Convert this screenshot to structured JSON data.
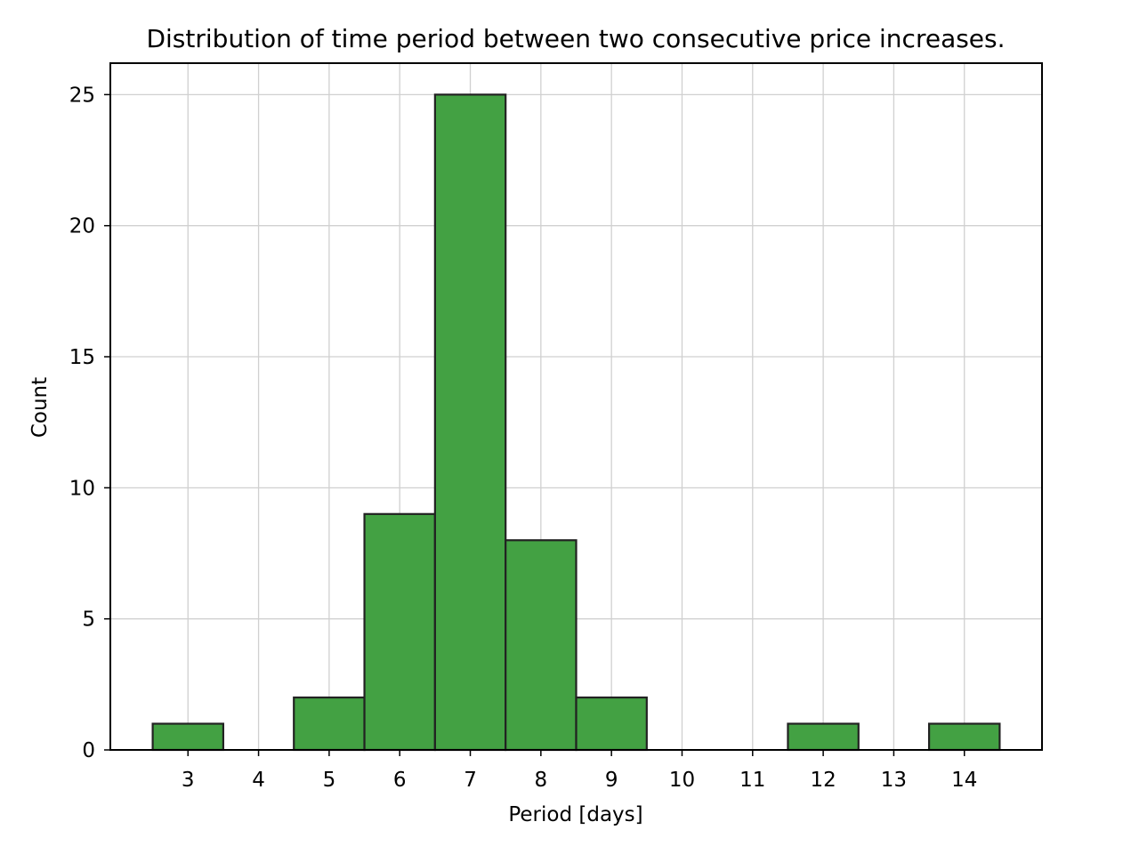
{
  "chart_data": {
    "type": "bar",
    "title": "Distribution of time period between two consecutive price increases.",
    "xlabel": "Period [days]",
    "ylabel": "Count",
    "x": [
      3,
      4,
      5,
      6,
      7,
      8,
      9,
      10,
      11,
      12,
      13,
      14
    ],
    "values": [
      1,
      0,
      2,
      9,
      25,
      8,
      2,
      0,
      0,
      1,
      0,
      1
    ],
    "xlim": [
      1.9,
      15.1
    ],
    "ylim": [
      0,
      26.2
    ],
    "x_ticks": [
      3,
      4,
      5,
      6,
      7,
      8,
      9,
      10,
      11,
      12,
      13,
      14
    ],
    "y_ticks": [
      0,
      5,
      10,
      15,
      20,
      25
    ],
    "grid": true,
    "bar_color": "#43a143",
    "bar_edge_color": "#222222"
  }
}
